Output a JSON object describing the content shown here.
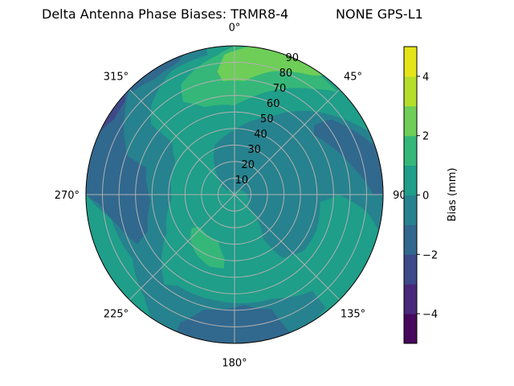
{
  "chart_data": {
    "type": "polar-contour",
    "title_left": "Delta Antenna Phase Biases: TRMR8-4",
    "title_right": "NONE GPS-L1",
    "angular_ticks": [
      {
        "az": 0,
        "label": "0°"
      },
      {
        "az": 45,
        "label": "45°"
      },
      {
        "az": 90,
        "label": "90°"
      },
      {
        "az": 135,
        "label": "135°"
      },
      {
        "az": 180,
        "label": "180°"
      },
      {
        "az": 225,
        "label": "225°"
      },
      {
        "az": 270,
        "label": "270°"
      },
      {
        "az": 315,
        "label": "315°"
      }
    ],
    "radial_ticks": [
      "10",
      "20",
      "30",
      "40",
      "50",
      "60",
      "70",
      "80",
      "90"
    ],
    "radial_range": [
      0,
      90
    ],
    "theta_direction": "clockwise",
    "theta_zero": "north",
    "grid": true,
    "levels": [
      -5,
      -4,
      -3,
      -2,
      -1,
      0,
      1,
      2,
      3,
      4,
      5
    ],
    "level_colors": [
      "#46085c",
      "#482878",
      "#3e4989",
      "#31688e",
      "#26828e",
      "#1f9e89",
      "#35b779",
      "#6ece58",
      "#b5de2b",
      "#e5e419"
    ],
    "background_band": [
      0,
      1
    ],
    "regions": [
      {
        "band": [
          -1,
          0
        ],
        "points": [
          [
            349,
            90
          ],
          [
            349,
            86
          ],
          [
            333,
            84
          ],
          [
            317,
            74
          ],
          [
            310,
            66
          ],
          [
            310,
            49
          ],
          [
            299,
            41
          ],
          [
            267,
            38
          ],
          [
            241,
            47
          ],
          [
            218,
            69
          ],
          [
            212,
            65
          ],
          [
            189,
            65
          ],
          [
            160,
            67
          ],
          [
            141,
            75
          ],
          [
            141,
            88
          ],
          [
            148,
            90
          ],
          [
            214,
            90
          ],
          [
            221,
            83
          ],
          [
            238,
            73
          ],
          [
            259,
            76
          ],
          [
            270,
            90
          ],
          [
            300,
            90
          ],
          [
            330,
            90
          ]
        ]
      },
      {
        "band": [
          -1,
          0
        ],
        "points": [
          [
            299,
            5
          ],
          [
            319,
            16
          ],
          [
            338,
            32
          ],
          [
            0,
            39
          ],
          [
            25,
            52
          ],
          [
            42,
            68
          ],
          [
            55,
            80
          ],
          [
            65,
            90
          ],
          [
            90,
            90
          ],
          [
            104,
            90
          ],
          [
            97,
            80
          ],
          [
            90,
            63
          ],
          [
            95,
            52
          ],
          [
            113,
            54
          ],
          [
            129,
            54
          ],
          [
            143,
            48
          ],
          [
            147,
            32
          ],
          [
            130,
            11
          ],
          [
            0,
            0
          ]
        ]
      },
      {
        "band": [
          -2,
          -1
        ],
        "points": [
          [
            315,
            90
          ],
          [
            302,
            79
          ],
          [
            290,
            69
          ],
          [
            287,
            56
          ],
          [
            266,
            51
          ],
          [
            247,
            57
          ],
          [
            243,
            66
          ],
          [
            255,
            73
          ],
          [
            266,
            82
          ],
          [
            270,
            90
          ],
          [
            290,
            90
          ],
          [
            305,
            90
          ]
        ]
      },
      {
        "band": [
          -2,
          -1
        ],
        "points": [
          [
            315,
            90
          ],
          [
            340,
            90
          ],
          [
            337,
            87
          ],
          [
            325,
            85
          ],
          [
            315,
            88
          ]
        ]
      },
      {
        "band": [
          -2,
          -1
        ],
        "points": [
          [
            49,
            64
          ],
          [
            52,
            74
          ],
          [
            62,
            82
          ],
          [
            71,
            90
          ],
          [
            90,
            90
          ],
          [
            90,
            84
          ],
          [
            76,
            73
          ],
          [
            63,
            65
          ],
          [
            53,
            60
          ]
        ]
      },
      {
        "band": [
          -2,
          -1
        ],
        "points": [
          [
            203,
            90
          ],
          [
            203,
            84
          ],
          [
            195,
            72
          ],
          [
            175,
            67
          ],
          [
            162,
            73
          ],
          [
            158,
            90
          ],
          [
            180,
            90
          ]
        ]
      },
      {
        "band": [
          -3,
          -2
        ],
        "points": [
          [
            313,
            90
          ],
          [
            303,
            90
          ],
          [
            295,
            90
          ],
          [
            302,
            86
          ],
          [
            310,
            87
          ]
        ]
      },
      {
        "band": [
          1,
          2
        ],
        "points": [
          [
            331,
            64
          ],
          [
            334,
            74
          ],
          [
            345,
            81
          ],
          [
            353,
            85
          ],
          [
            0,
            90
          ],
          [
            20,
            90
          ],
          [
            45,
            88
          ],
          [
            36,
            79
          ],
          [
            20,
            67
          ],
          [
            9,
            59
          ],
          [
            0,
            54
          ],
          [
            341,
            56
          ]
        ]
      },
      {
        "band": [
          1,
          2
        ],
        "points": [
          [
            232,
            33
          ],
          [
            228,
            29
          ],
          [
            199,
            30
          ],
          [
            189,
            39
          ],
          [
            188,
            45
          ],
          [
            199,
            46
          ],
          [
            212,
            43
          ],
          [
            223,
            39
          ]
        ]
      },
      {
        "band": [
          2,
          3
        ],
        "points": [
          [
            352,
            75
          ],
          [
            356,
            85
          ],
          [
            6,
            90
          ],
          [
            23,
            90
          ],
          [
            37,
            90
          ],
          [
            33,
            86
          ],
          [
            17,
            78
          ],
          [
            5,
            69
          ],
          [
            354,
            69
          ]
        ]
      }
    ],
    "colorbar": {
      "label": "Bias (mm)",
      "range": [
        -5,
        5
      ],
      "ticks": [
        {
          "value": -4,
          "label": "−4"
        },
        {
          "value": -2,
          "label": "−2"
        },
        {
          "value": 0,
          "label": "0"
        },
        {
          "value": 2,
          "label": "2"
        },
        {
          "value": 4,
          "label": "4"
        }
      ]
    }
  }
}
